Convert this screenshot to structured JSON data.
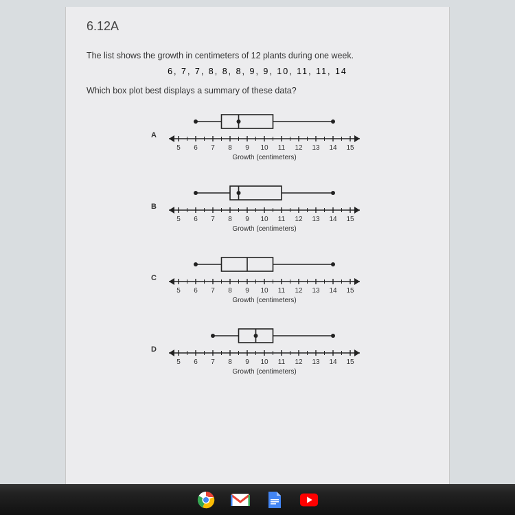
{
  "question": {
    "number": "6.12A",
    "stem1": "The list shows the growth in centimeters of 12 plants during one week.",
    "data_values": "6,  7,  7,  8,  8,  8,  9,  9,  10,  11,  11,  14",
    "stem2": "Which box plot best displays a summary of these data?",
    "axis_label": "Growth (centimeters)",
    "ticks": [
      5,
      6,
      7,
      8,
      9,
      10,
      11,
      12,
      13,
      14,
      15
    ],
    "xlim": [
      5,
      15
    ],
    "colors": {
      "line": "#222222",
      "fill": "#ececee",
      "dot": "#222222",
      "text": "#333333"
    },
    "choices": [
      {
        "letter": "A",
        "min": 6,
        "q1": 7.5,
        "med": 8.5,
        "q3": 10.5,
        "max": 14,
        "median_dot": true
      },
      {
        "letter": "B",
        "min": 6,
        "q1": 8,
        "med": 8.5,
        "q3": 11,
        "max": 14,
        "median_dot": true
      },
      {
        "letter": "C",
        "min": 6,
        "q1": 7.5,
        "med": 9,
        "q3": 10.5,
        "max": 14,
        "median_dot": false
      },
      {
        "letter": "D",
        "min": 7,
        "q1": 8.5,
        "med": 9.5,
        "q3": 10.5,
        "max": 14,
        "median_dot": true
      }
    ]
  },
  "dock": {
    "items": [
      "chrome-icon",
      "gmail-icon",
      "docs-icon",
      "youtube-icon"
    ]
  }
}
